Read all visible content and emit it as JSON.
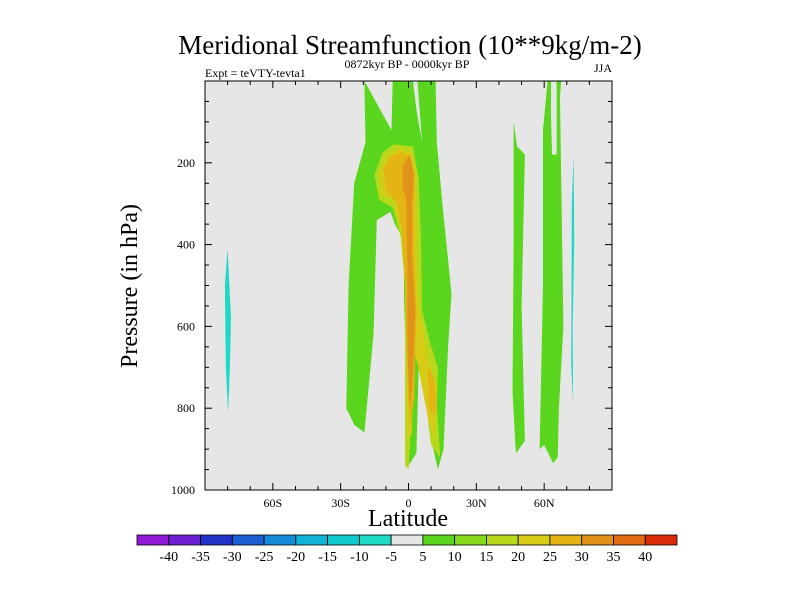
{
  "chart_data": {
    "type": "contour",
    "title": "Meridional Streamfunction (10**9kg/m-2)",
    "experiment": "Expt = teVTY-tevta1",
    "period": "0872kyr BP - 0000kyr BP",
    "season": "JJA",
    "xlabel": "Latitude",
    "ylabel": "Pressure (in hPa)",
    "xlim": [
      -90,
      90
    ],
    "ylim": [
      1000,
      0
    ],
    "x_ticks": [
      {
        "value": -60,
        "label": "60S"
      },
      {
        "value": -30,
        "label": "30S"
      },
      {
        "value": 0,
        "label": "0"
      },
      {
        "value": 30,
        "label": "30N"
      },
      {
        "value": 60,
        "label": "60N"
      }
    ],
    "y_ticks": [
      {
        "value": 200,
        "label": "200"
      },
      {
        "value": 400,
        "label": "400"
      },
      {
        "value": 600,
        "label": "600"
      },
      {
        "value": 800,
        "label": "800"
      },
      {
        "value": 1000,
        "label": "1000"
      }
    ],
    "background_color": "#e6e6e6",
    "colorbar": {
      "levels": [
        "-40",
        "-35",
        "-30",
        "-25",
        "-20",
        "-15",
        "-10",
        "-5",
        "5",
        "10",
        "15",
        "20",
        "25",
        "30",
        "35",
        "40"
      ],
      "colors": [
        "#8f19d4",
        "#6b1ed1",
        "#2233c8",
        "#1b5fd3",
        "#158bd8",
        "#11b3d8",
        "#0fc9cf",
        "#1ed9c6",
        "#e6e6e6",
        "#5bd61e",
        "#86d91c",
        "#b7d81b",
        "#d7cb16",
        "#e3b414",
        "#e1921a",
        "#e06b12",
        "#d92b0a"
      ]
    },
    "regions": [
      {
        "name": "cyan-band-south",
        "value": -7.5,
        "color": "#1ed9c6",
        "points": [
          [
            -80,
            410
          ],
          [
            -78.5,
            580
          ],
          [
            -79,
            700
          ],
          [
            -79.8,
            810
          ],
          [
            -80.8,
            700
          ],
          [
            -81.2,
            500
          ]
        ]
      },
      {
        "name": "cyan-band-north",
        "value": -7.5,
        "color": "#1ed9c6",
        "points": [
          [
            73,
            180
          ],
          [
            73.3,
            400
          ],
          [
            72.6,
            600
          ],
          [
            72.8,
            790
          ],
          [
            72,
            700
          ],
          [
            72.2,
            300
          ]
        ]
      },
      {
        "name": "green-north-band-a",
        "value": 7.5,
        "color": "#5bd61e",
        "points": [
          [
            46.5,
            100
          ],
          [
            48,
            160
          ],
          [
            51.5,
            180
          ],
          [
            50,
            550
          ],
          [
            51.5,
            880
          ],
          [
            47.5,
            910
          ],
          [
            46,
            760
          ],
          [
            46.5,
            400
          ]
        ]
      },
      {
        "name": "green-north-band-b",
        "value": 7.5,
        "color": "#5bd61e",
        "points": [
          [
            61.5,
            0
          ],
          [
            67.5,
            0
          ],
          [
            67,
            40
          ],
          [
            68.5,
            600
          ],
          [
            66.5,
            800
          ],
          [
            66,
            920
          ],
          [
            64,
            935
          ],
          [
            60,
            890
          ],
          [
            58,
            900
          ],
          [
            59.5,
            500
          ],
          [
            59.5,
            120
          ]
        ]
      },
      {
        "name": "grey-hole-north",
        "value": 0,
        "color": "#e6e6e6",
        "points": [
          [
            63,
            0
          ],
          [
            65.5,
            0
          ],
          [
            65.5,
            180
          ],
          [
            63.5,
            180
          ],
          [
            63,
            90
          ]
        ]
      },
      {
        "name": "green-main-cell",
        "value": 7.5,
        "color": "#5bd61e",
        "points": [
          [
            -19.5,
            0
          ],
          [
            -19,
            150
          ],
          [
            -24,
            250
          ],
          [
            -26.5,
            500
          ],
          [
            -27.5,
            800
          ],
          [
            -24,
            840
          ],
          [
            -19.5,
            860
          ],
          [
            -15.5,
            620
          ],
          [
            -14,
            340
          ],
          [
            -8,
            320
          ],
          [
            -6,
            350
          ],
          [
            -2,
            390
          ],
          [
            -2,
            520
          ],
          [
            0,
            940
          ],
          [
            3.5,
            910
          ],
          [
            5,
            600
          ],
          [
            7,
            700
          ],
          [
            9,
            850
          ],
          [
            13,
            950
          ],
          [
            15.5,
            900
          ],
          [
            17.5,
            650
          ],
          [
            19,
            520
          ],
          [
            15,
            300
          ],
          [
            12.5,
            150
          ],
          [
            12,
            0
          ],
          [
            4,
            0
          ],
          [
            6,
            150
          ],
          [
            3.5,
            70
          ],
          [
            2,
            0
          ],
          [
            -7,
            0
          ],
          [
            -7.5,
            120
          ]
        ]
      },
      {
        "name": "yellow-main-cell",
        "value": 12.5,
        "color": "#b7d81b",
        "points": [
          [
            -15,
            230
          ],
          [
            -11.5,
            175
          ],
          [
            -6.5,
            155
          ],
          [
            2,
            160
          ],
          [
            4.5,
            240
          ],
          [
            5.5,
            380
          ],
          [
            6,
            560
          ],
          [
            9.5,
            640
          ],
          [
            13,
            700
          ],
          [
            12.5,
            790
          ],
          [
            14,
            920
          ],
          [
            10,
            890
          ],
          [
            8,
            800
          ],
          [
            4.5,
            650
          ],
          [
            2.5,
            540
          ],
          [
            2,
            760
          ],
          [
            0,
            950
          ],
          [
            -1.5,
            940
          ],
          [
            -1.5,
            500
          ],
          [
            -3.5,
            380
          ],
          [
            -7,
            310
          ],
          [
            -13,
            290
          ]
        ]
      },
      {
        "name": "gold-main-cell",
        "value": 17.5,
        "color": "#d7cb16",
        "points": [
          [
            -12.5,
            220
          ],
          [
            -9,
            180
          ],
          [
            -4,
            165
          ],
          [
            1.5,
            175
          ],
          [
            3.5,
            230
          ],
          [
            3.5,
            420
          ],
          [
            4.5,
            550
          ],
          [
            8.5,
            680
          ],
          [
            12.5,
            745
          ],
          [
            11.5,
            880
          ],
          [
            8.5,
            820
          ],
          [
            4,
            690
          ],
          [
            1.5,
            640
          ],
          [
            1.5,
            860
          ],
          [
            -0.5,
            880
          ],
          [
            -1,
            500
          ],
          [
            -3,
            370
          ],
          [
            -6.5,
            290
          ],
          [
            -12,
            280
          ]
        ]
      },
      {
        "name": "orange-main-cell",
        "value": 22.5,
        "color": "#e3b414",
        "points": [
          [
            -11,
            215
          ],
          [
            -8,
            185
          ],
          [
            -3.5,
            175
          ],
          [
            1,
            185
          ],
          [
            2.5,
            240
          ],
          [
            2.5,
            430
          ],
          [
            3.5,
            560
          ],
          [
            2.5,
            780
          ],
          [
            0.5,
            850
          ],
          [
            -0.5,
            700
          ],
          [
            -1.5,
            500
          ],
          [
            -3,
            360
          ],
          [
            -5,
            300
          ],
          [
            -10,
            265
          ]
        ]
      },
      {
        "name": "dark-orange-core",
        "value": 27.5,
        "color": "#e1921a",
        "points": [
          [
            -2.5,
            210
          ],
          [
            0.5,
            180
          ],
          [
            2.5,
            230
          ],
          [
            1.5,
            300
          ],
          [
            1.5,
            420
          ],
          [
            3,
            560
          ],
          [
            2,
            720
          ],
          [
            0.5,
            800
          ],
          [
            -0.5,
            650
          ],
          [
            -0.5,
            450
          ],
          [
            -1,
            290
          ],
          [
            -2.5,
            260
          ]
        ]
      },
      {
        "name": "orange-patch-north",
        "value": 22.5,
        "color": "#e3b414",
        "points": [
          [
            8.5,
            700
          ],
          [
            11,
            720
          ],
          [
            12.5,
            780
          ],
          [
            12,
            820
          ],
          [
            9,
            800
          ]
        ]
      }
    ]
  }
}
